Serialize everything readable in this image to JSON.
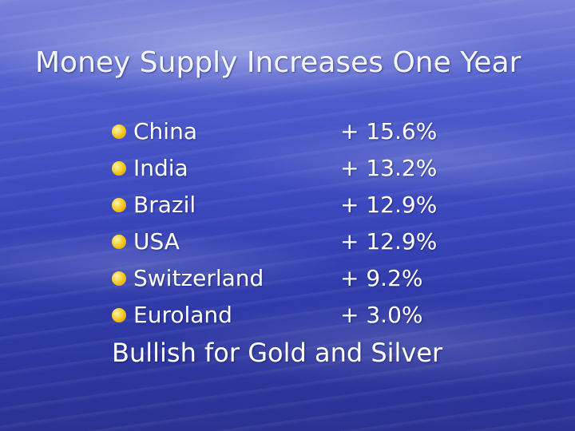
{
  "slide": {
    "title": "Money Supply Increases One Year",
    "items": [
      {
        "country": "China",
        "value": "+ 15.6%"
      },
      {
        "country": "India",
        "value": "+ 13.2%"
      },
      {
        "country": "Brazil",
        "value": "+ 12.9%"
      },
      {
        "country": "USA",
        "value": "+ 12.9%"
      },
      {
        "country": "Switzerland",
        "value": "+ 9.2%"
      },
      {
        "country": "Euroland",
        "value": "+ 3.0%"
      }
    ],
    "conclusion": "Bullish for Gold and Silver"
  },
  "colors": {
    "bullet": "#f2c418",
    "text": "#ffffff",
    "background": "#3b47bd"
  }
}
